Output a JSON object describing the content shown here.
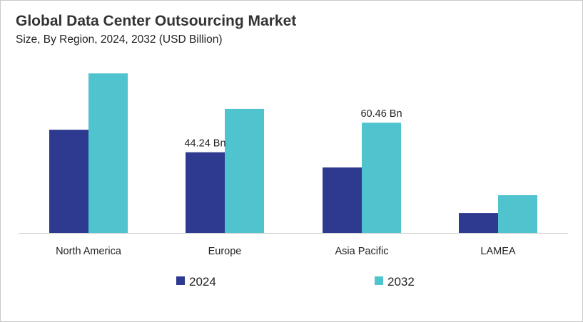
{
  "chart_data": {
    "type": "bar",
    "title": "Global Data Center Outsourcing Market",
    "subtitle": "Size, By Region, 2024, 2032 (USD Billion)",
    "categories": [
      "North America",
      "Europe",
      "Asia Pacific",
      "LAMEA"
    ],
    "series": [
      {
        "name": "2024",
        "color": "#2e3a8f",
        "values": [
          56.6,
          44.24,
          35.9,
          10.9
        ]
      },
      {
        "name": "2032",
        "color": "#4fc4cf",
        "values": [
          87.5,
          68.0,
          60.46,
          20.7
        ]
      }
    ],
    "data_labels": [
      {
        "series": 0,
        "category": 1,
        "text": "44.24 Bn"
      },
      {
        "series": 1,
        "category": 2,
        "text": "60.46 Bn"
      }
    ],
    "ylim": [
      0,
      100
    ],
    "grid": false,
    "y_axis_visible": false,
    "legend": "bottom"
  }
}
